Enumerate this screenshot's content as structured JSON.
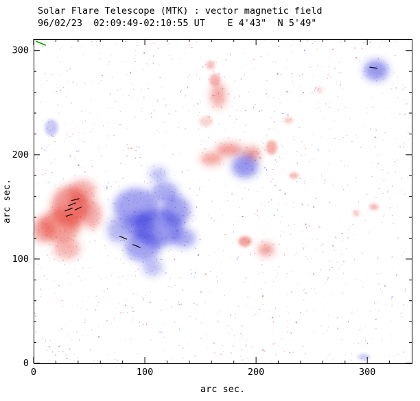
{
  "chart_data": {
    "type": "scatter",
    "title": "Solar Flare Telescope (MTK) : vector magnetic field",
    "subtitle": "96/02/23  02:09:49-02:10:55 UT    E 4'43\"  N 5'49\"",
    "xlabel": "arc sec.",
    "ylabel": "arc sec.",
    "xlim": [
      0,
      340
    ],
    "ylim": [
      0,
      311
    ],
    "xticks": [
      0,
      100,
      200,
      300
    ],
    "yticks": [
      0,
      100,
      200,
      300
    ],
    "minor_tick_step": 20,
    "grid": false,
    "legend_position": "none",
    "colors": {
      "positive": "#e43028",
      "negative": "#3030dd",
      "vector": "#000000",
      "calibration": "#00a000",
      "frame": "#000000",
      "background": "#ffffff"
    },
    "blobs": [
      {
        "x": 32,
        "y": 150,
        "rx": 16,
        "ry": 20,
        "p": "+",
        "o": 0.5
      },
      {
        "x": 24,
        "y": 132,
        "rx": 18,
        "ry": 16,
        "p": "+",
        "o": 0.45
      },
      {
        "x": 9,
        "y": 128,
        "rx": 11,
        "ry": 12,
        "p": "+",
        "o": 0.4
      },
      {
        "x": 44,
        "y": 165,
        "rx": 12,
        "ry": 11,
        "p": "+",
        "o": 0.38
      },
      {
        "x": 30,
        "y": 110,
        "rx": 12,
        "ry": 10,
        "p": "+",
        "o": 0.35
      },
      {
        "x": 52,
        "y": 143,
        "rx": 9,
        "ry": 14,
        "p": "+",
        "o": 0.4
      },
      {
        "x": 40,
        "y": 150,
        "rx": 10,
        "ry": 12,
        "p": "+",
        "o": 0.35
      },
      {
        "x": 160,
        "y": 196,
        "rx": 10,
        "ry": 6,
        "p": "+",
        "o": 0.45
      },
      {
        "x": 176,
        "y": 205,
        "rx": 12,
        "ry": 6,
        "p": "+",
        "o": 0.5
      },
      {
        "x": 196,
        "y": 201,
        "rx": 8,
        "ry": 7,
        "p": "+",
        "o": 0.45
      },
      {
        "x": 214,
        "y": 207,
        "rx": 5,
        "ry": 7,
        "p": "+",
        "o": 0.38
      },
      {
        "x": 166,
        "y": 257,
        "rx": 7,
        "ry": 12,
        "p": "+",
        "o": 0.4
      },
      {
        "x": 163,
        "y": 272,
        "rx": 5,
        "ry": 6,
        "p": "+",
        "o": 0.32
      },
      {
        "x": 159,
        "y": 286,
        "rx": 4,
        "ry": 4,
        "p": "+",
        "o": 0.3
      },
      {
        "x": 190,
        "y": 117,
        "rx": 6,
        "ry": 5,
        "p": "+",
        "o": 0.45
      },
      {
        "x": 209,
        "y": 109,
        "rx": 7,
        "ry": 6,
        "p": "+",
        "o": 0.5
      },
      {
        "x": 234,
        "y": 180,
        "rx": 4,
        "ry": 3,
        "p": "+",
        "o": 0.35
      },
      {
        "x": 306,
        "y": 150,
        "rx": 4,
        "ry": 3,
        "p": "+",
        "o": 0.35
      },
      {
        "x": 290,
        "y": 144,
        "rx": 3,
        "ry": 3,
        "p": "+",
        "o": 0.25
      },
      {
        "x": 229,
        "y": 233,
        "rx": 4,
        "ry": 3,
        "p": "+",
        "o": 0.25
      },
      {
        "x": 155,
        "y": 232,
        "rx": 6,
        "ry": 5,
        "p": "+",
        "o": 0.2
      },
      {
        "x": 257,
        "y": 262,
        "rx": 3,
        "ry": 3,
        "p": "+",
        "o": 0.2
      },
      {
        "x": 92,
        "y": 150,
        "rx": 20,
        "ry": 18,
        "p": "-",
        "o": 0.45
      },
      {
        "x": 112,
        "y": 130,
        "rx": 22,
        "ry": 18,
        "p": "-",
        "o": 0.5
      },
      {
        "x": 98,
        "y": 112,
        "rx": 16,
        "ry": 14,
        "p": "-",
        "o": 0.45
      },
      {
        "x": 128,
        "y": 146,
        "rx": 13,
        "ry": 15,
        "p": "-",
        "o": 0.45
      },
      {
        "x": 118,
        "y": 164,
        "rx": 12,
        "ry": 10,
        "p": "-",
        "o": 0.4
      },
      {
        "x": 135,
        "y": 120,
        "rx": 11,
        "ry": 9,
        "p": "-",
        "o": 0.4
      },
      {
        "x": 107,
        "y": 92,
        "rx": 9,
        "ry": 8,
        "p": "-",
        "o": 0.3
      },
      {
        "x": 76,
        "y": 128,
        "rx": 10,
        "ry": 12,
        "p": "-",
        "o": 0.35
      },
      {
        "x": 112,
        "y": 181,
        "rx": 8,
        "ry": 7,
        "p": "-",
        "o": 0.3
      },
      {
        "x": 95,
        "y": 132,
        "rx": 14,
        "ry": 12,
        "p": "-",
        "o": 0.4
      },
      {
        "x": 190,
        "y": 189,
        "rx": 12,
        "ry": 11,
        "p": "-",
        "o": 0.5
      },
      {
        "x": 308,
        "y": 281,
        "rx": 11,
        "ry": 10,
        "p": "-",
        "o": 0.5
      },
      {
        "x": 16,
        "y": 226,
        "rx": 6,
        "ry": 8,
        "p": "-",
        "o": 0.25
      },
      {
        "x": 297,
        "y": 6,
        "rx": 5,
        "ry": 3,
        "p": "-",
        "o": 0.25
      }
    ],
    "vectors": [
      [
        28,
        146,
        35,
        149
      ],
      [
        31,
        151,
        38,
        154
      ],
      [
        34,
        156,
        41,
        158
      ],
      [
        37,
        147,
        43,
        150
      ],
      [
        29,
        141,
        35,
        143
      ],
      [
        77,
        122,
        84,
        119
      ],
      [
        89,
        114,
        96,
        111
      ],
      [
        302,
        284,
        309,
        283
      ]
    ],
    "calibration_mark": [
      2,
      309,
      11,
      305
    ],
    "noise": {
      "count": 1500,
      "seed": 987654321,
      "max_opacity": 0.45
    }
  }
}
